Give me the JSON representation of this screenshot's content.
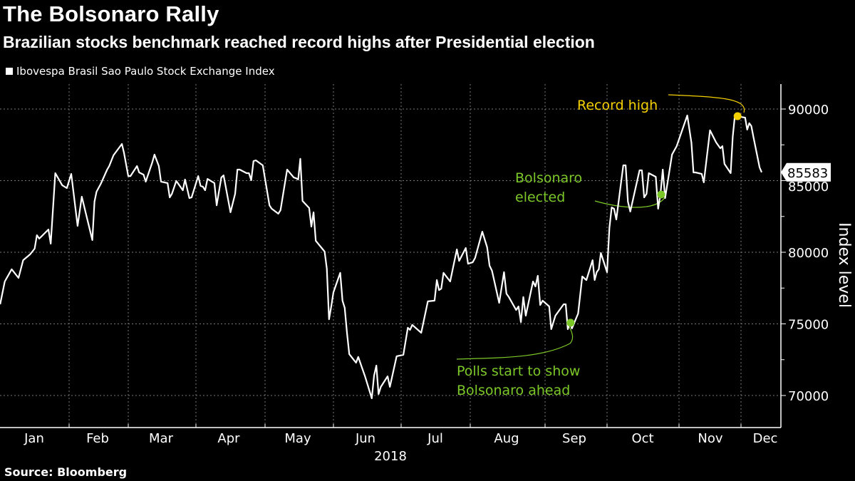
{
  "chart_data": {
    "type": "line",
    "title": "The Bolsonaro Rally",
    "subtitle": "Brazilian stocks benchmark reached record highs after Presidential election",
    "legend": "Ibovespa Brasil Sao Paulo Stock Exchange Index",
    "legend_placement": "top-left",
    "xlabel": "2018",
    "ylabel": "Index level",
    "ylim": [
      67500,
      92500
    ],
    "yticks": [
      "90000",
      "85000",
      "80000",
      "75000",
      "70000"
    ],
    "ytick_values": [
      90000,
      85000,
      80000,
      75000,
      70000
    ],
    "xticks": [
      "Jan",
      "Feb",
      "Mar",
      "Apr",
      "May",
      "Jun",
      "Jul",
      "Aug",
      "Sep",
      "Oct",
      "Nov",
      "Dec"
    ],
    "grid": true,
    "line_color": "#ffffff",
    "last_value_label": "85583",
    "source": "Source: Bloomberg",
    "annotations": [
      {
        "text_lines": [
          "Record high"
        ],
        "date": "2018-11-29",
        "value": 89500,
        "color": "#f5d000"
      },
      {
        "text_lines": [
          "Bolsonaro",
          "elected"
        ],
        "date": "2018-10-24",
        "value": 84030,
        "color": "#7cc728"
      },
      {
        "text_lines": [
          "Polls start to show",
          "Bolsonaro ahead"
        ],
        "date": "2018-09-13",
        "value": 75080,
        "color": "#7cc728"
      }
    ],
    "series": [
      {
        "points": [
          [
            "2018-01-02",
            76370
          ],
          [
            "2018-01-04",
            77960
          ],
          [
            "2018-01-07",
            78810
          ],
          [
            "2018-01-10",
            78210
          ],
          [
            "2018-01-12",
            79450
          ],
          [
            "2018-01-15",
            79850
          ],
          [
            "2018-01-17",
            80250
          ],
          [
            "2018-01-18",
            81190
          ],
          [
            "2018-01-19",
            80950
          ],
          [
            "2018-01-23",
            81590
          ],
          [
            "2018-01-24",
            80600
          ],
          [
            "2018-01-26",
            85520
          ],
          [
            "2018-01-29",
            84680
          ],
          [
            "2018-01-31",
            84480
          ],
          [
            "2018-02-02",
            85470
          ],
          [
            "2018-02-05",
            81840
          ],
          [
            "2018-02-07",
            83880
          ],
          [
            "2018-02-12",
            80850
          ],
          [
            "2018-02-13",
            83530
          ],
          [
            "2018-02-14",
            84230
          ],
          [
            "2018-02-16",
            84780
          ],
          [
            "2018-02-19",
            85770
          ],
          [
            "2018-02-20",
            86020
          ],
          [
            "2018-02-22",
            86770
          ],
          [
            "2018-02-26",
            87560
          ],
          [
            "2018-02-27",
            86920
          ],
          [
            "2018-03-01",
            85320
          ],
          [
            "2018-03-02",
            85320
          ],
          [
            "2018-03-05",
            86020
          ],
          [
            "2018-03-06",
            85570
          ],
          [
            "2018-03-08",
            85420
          ],
          [
            "2018-03-09",
            84930
          ],
          [
            "2018-03-12",
            86270
          ],
          [
            "2018-03-13",
            86820
          ],
          [
            "2018-03-15",
            86020
          ],
          [
            "2018-03-16",
            84930
          ],
          [
            "2018-03-19",
            84830
          ],
          [
            "2018-03-20",
            83830
          ],
          [
            "2018-03-21",
            84080
          ],
          [
            "2018-03-23",
            84980
          ],
          [
            "2018-03-26",
            84330
          ],
          [
            "2018-03-27",
            85080
          ],
          [
            "2018-03-29",
            83780
          ],
          [
            "2018-03-30",
            83830
          ],
          [
            "2018-04-02",
            85320
          ],
          [
            "2018-04-03",
            84630
          ],
          [
            "2018-04-04",
            84580
          ],
          [
            "2018-04-05",
            84330
          ],
          [
            "2018-04-06",
            85120
          ],
          [
            "2018-04-09",
            84830
          ],
          [
            "2018-04-10",
            83280
          ],
          [
            "2018-04-12",
            85220
          ],
          [
            "2018-04-13",
            85370
          ],
          [
            "2018-04-16",
            82790
          ],
          [
            "2018-04-18",
            84080
          ],
          [
            "2018-04-19",
            85770
          ],
          [
            "2018-04-20",
            85770
          ],
          [
            "2018-04-23",
            85520
          ],
          [
            "2018-04-24",
            85520
          ],
          [
            "2018-04-25",
            85030
          ],
          [
            "2018-04-26",
            86370
          ],
          [
            "2018-04-27",
            86420
          ],
          [
            "2018-04-30",
            86070
          ],
          [
            "2018-05-03",
            83280
          ],
          [
            "2018-05-04",
            83040
          ],
          [
            "2018-05-07",
            82690
          ],
          [
            "2018-05-08",
            82940
          ],
          [
            "2018-05-11",
            85770
          ],
          [
            "2018-05-14",
            85220
          ],
          [
            "2018-05-15",
            85170
          ],
          [
            "2018-05-16",
            85080
          ],
          [
            "2018-05-17",
            86520
          ],
          [
            "2018-05-18",
            83580
          ],
          [
            "2018-05-21",
            83090
          ],
          [
            "2018-05-22",
            81790
          ],
          [
            "2018-05-23",
            82790
          ],
          [
            "2018-05-24",
            80800
          ],
          [
            "2018-05-28",
            80050
          ],
          [
            "2018-05-29",
            78860
          ],
          [
            "2018-05-30",
            75320
          ],
          [
            "2018-05-31",
            76220
          ],
          [
            "2018-06-01",
            77210
          ],
          [
            "2018-06-04",
            78560
          ],
          [
            "2018-06-05",
            76620
          ],
          [
            "2018-06-06",
            76120
          ],
          [
            "2018-06-07",
            74380
          ],
          [
            "2018-06-08",
            72890
          ],
          [
            "2018-06-11",
            72290
          ],
          [
            "2018-06-12",
            72690
          ],
          [
            "2018-06-15",
            71340
          ],
          [
            "2018-06-18",
            69800
          ],
          [
            "2018-06-19",
            71390
          ],
          [
            "2018-06-20",
            72090
          ],
          [
            "2018-06-21",
            70100
          ],
          [
            "2018-06-22",
            70600
          ],
          [
            "2018-06-25",
            71340
          ],
          [
            "2018-06-26",
            70600
          ],
          [
            "2018-06-29",
            72740
          ],
          [
            "2018-07-02",
            72840
          ],
          [
            "2018-07-04",
            74730
          ],
          [
            "2018-07-05",
            74580
          ],
          [
            "2018-07-06",
            74930
          ],
          [
            "2018-07-10",
            74380
          ],
          [
            "2018-07-13",
            76570
          ],
          [
            "2018-07-16",
            76620
          ],
          [
            "2018-07-17",
            78060
          ],
          [
            "2018-07-18",
            77360
          ],
          [
            "2018-07-19",
            77460
          ],
          [
            "2018-07-20",
            78560
          ],
          [
            "2018-07-23",
            77960
          ],
          [
            "2018-07-26",
            80200
          ],
          [
            "2018-07-27",
            79400
          ],
          [
            "2018-07-30",
            80300
          ],
          [
            "2018-07-31",
            79200
          ],
          [
            "2018-08-02",
            79300
          ],
          [
            "2018-08-03",
            79600
          ],
          [
            "2018-08-06",
            81440
          ],
          [
            "2018-08-08",
            80350
          ],
          [
            "2018-08-09",
            79060
          ],
          [
            "2018-08-10",
            78710
          ],
          [
            "2018-08-13",
            76470
          ],
          [
            "2018-08-15",
            78610
          ],
          [
            "2018-08-16",
            77110
          ],
          [
            "2018-08-17",
            76870
          ],
          [
            "2018-08-20",
            75970
          ],
          [
            "2018-08-21",
            76220
          ],
          [
            "2018-08-22",
            75120
          ],
          [
            "2018-08-23",
            76870
          ],
          [
            "2018-08-24",
            75570
          ],
          [
            "2018-08-27",
            77960
          ],
          [
            "2018-08-28",
            77610
          ],
          [
            "2018-08-29",
            78360
          ],
          [
            "2018-08-30",
            76320
          ],
          [
            "2018-08-31",
            76620
          ],
          [
            "2018-09-03",
            76220
          ],
          [
            "2018-09-04",
            74630
          ],
          [
            "2018-09-06",
            75570
          ],
          [
            "2018-09-10",
            76370
          ],
          [
            "2018-09-11",
            76370
          ],
          [
            "2018-09-12",
            74630
          ],
          [
            "2018-09-13",
            75080
          ],
          [
            "2018-09-14",
            74680
          ],
          [
            "2018-09-17",
            75720
          ],
          [
            "2018-09-19",
            78310
          ],
          [
            "2018-09-21",
            78060
          ],
          [
            "2018-09-24",
            79450
          ],
          [
            "2018-09-25",
            78060
          ],
          [
            "2018-09-26",
            78610
          ],
          [
            "2018-09-27",
            78810
          ],
          [
            "2018-09-28",
            79950
          ],
          [
            "2018-10-01",
            78610
          ],
          [
            "2018-10-02",
            81690
          ],
          [
            "2018-10-03",
            83130
          ],
          [
            "2018-10-04",
            83040
          ],
          [
            "2018-10-05",
            82290
          ],
          [
            "2018-10-08",
            86070
          ],
          [
            "2018-10-09",
            86070
          ],
          [
            "2018-10-10",
            83530
          ],
          [
            "2018-10-11",
            82840
          ],
          [
            "2018-10-15",
            85720
          ],
          [
            "2018-10-16",
            85720
          ],
          [
            "2018-10-17",
            83830
          ],
          [
            "2018-10-18",
            84080
          ],
          [
            "2018-10-19",
            85520
          ],
          [
            "2018-10-22",
            85270
          ],
          [
            "2018-10-23",
            83040
          ],
          [
            "2018-10-24",
            84030
          ],
          [
            "2018-10-25",
            85770
          ],
          [
            "2018-10-26",
            83780
          ],
          [
            "2018-10-29",
            86820
          ],
          [
            "2018-10-31",
            87410
          ],
          [
            "2018-11-05",
            89550
          ],
          [
            "2018-11-07",
            87660
          ],
          [
            "2018-11-08",
            85570
          ],
          [
            "2018-11-09",
            85570
          ],
          [
            "2018-11-12",
            85470
          ],
          [
            "2018-11-13",
            84880
          ],
          [
            "2018-11-16",
            88510
          ],
          [
            "2018-11-19",
            87660
          ],
          [
            "2018-11-21",
            87260
          ],
          [
            "2018-11-22",
            87410
          ],
          [
            "2018-11-23",
            86170
          ],
          [
            "2018-11-26",
            85520
          ],
          [
            "2018-11-27",
            88060
          ],
          [
            "2018-11-28",
            89500
          ],
          [
            "2018-11-29",
            89500
          ],
          [
            "2018-12-03",
            89400
          ],
          [
            "2018-12-04",
            88560
          ],
          [
            "2018-12-05",
            89010
          ],
          [
            "2018-12-06",
            88810
          ],
          [
            "2018-12-07",
            88060
          ],
          [
            "2018-12-10",
            85920
          ],
          [
            "2018-12-11",
            85583
          ]
        ]
      }
    ]
  }
}
